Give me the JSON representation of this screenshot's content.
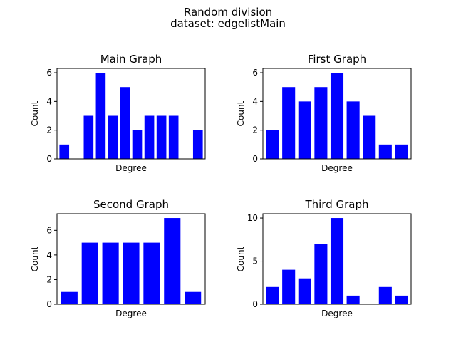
{
  "figure": {
    "suptitle_line1": "Random division",
    "suptitle_line2": "dataset: edgelistMain"
  },
  "chart_data": [
    {
      "type": "bar",
      "title": "Main Graph",
      "xlabel": "Degree",
      "ylabel": "Count",
      "values": [
        1,
        0,
        3,
        6,
        3,
        5,
        2,
        3,
        3,
        3,
        0,
        2
      ],
      "ylim": [
        0,
        6.3
      ],
      "yticks": [
        0,
        2,
        4,
        6
      ],
      "color": "#0000ff",
      "xticks_visible": false
    },
    {
      "type": "bar",
      "title": "First Graph",
      "xlabel": "Degree",
      "ylabel": "Count",
      "values": [
        2,
        5,
        4,
        5,
        6,
        4,
        3,
        1,
        1
      ],
      "ylim": [
        0,
        6.3
      ],
      "yticks": [
        0,
        2,
        4,
        6
      ],
      "color": "#0000ff",
      "xticks_visible": false
    },
    {
      "type": "bar",
      "title": "Second Graph",
      "xlabel": "Degree",
      "ylabel": "Count",
      "values": [
        1,
        5,
        5,
        5,
        5,
        7,
        1
      ],
      "ylim": [
        0,
        7.35
      ],
      "yticks": [
        0,
        2,
        4,
        6
      ],
      "color": "#0000ff",
      "xticks_visible": false
    },
    {
      "type": "bar",
      "title": "Third Graph",
      "xlabel": "Degree",
      "ylabel": "Count",
      "values": [
        2,
        4,
        3,
        7,
        10,
        1,
        0,
        2,
        1
      ],
      "ylim": [
        0,
        10.5
      ],
      "yticks": [
        0,
        5,
        10
      ],
      "color": "#0000ff",
      "xticks_visible": false
    }
  ]
}
